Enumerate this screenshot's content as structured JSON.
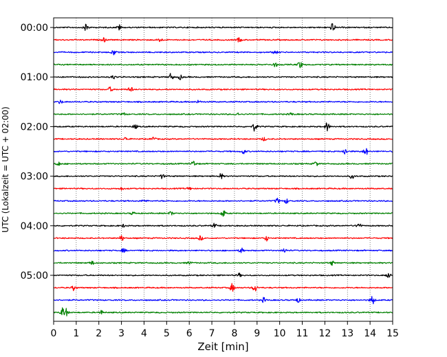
{
  "chart_data": {
    "type": "line",
    "subtype": "helicorder",
    "title": "",
    "xlabel": "Zeit  [min]",
    "ylabel": "UTC (Lokalzeit = UTC + 02:00)",
    "xlim": [
      0,
      15
    ],
    "x_ticks": [
      "0",
      "1",
      "2",
      "3",
      "4",
      "5",
      "6",
      "7",
      "8",
      "9",
      "10",
      "11",
      "12",
      "13",
      "14",
      "15"
    ],
    "y_ticks": [
      {
        "label": "00:00",
        "row": 0
      },
      {
        "label": "01:00",
        "row": 4
      },
      {
        "label": "02:00",
        "row": 8
      },
      {
        "label": "03:00",
        "row": 12
      },
      {
        "label": "04:00",
        "row": 16
      },
      {
        "label": "05:00",
        "row": 20
      }
    ],
    "row_minutes": 15,
    "row_count": 24,
    "color_cycle": [
      "#000000",
      "#ff0000",
      "#0000ff",
      "#008000"
    ],
    "vertical_grid": "dotted",
    "series": [
      {
        "events": [
          [
            1.45,
            1.0
          ],
          [
            2.9,
            0.6
          ],
          [
            12.35,
            1.0
          ]
        ]
      },
      {
        "events": [
          [
            2.2,
            0.5
          ],
          [
            4.7,
            0.5
          ],
          [
            8.2,
            0.5
          ]
        ]
      },
      {
        "events": [
          [
            2.65,
            0.6
          ],
          [
            9.8,
            0.4
          ]
        ]
      },
      {
        "events": [
          [
            9.8,
            0.5
          ],
          [
            10.9,
            0.8
          ]
        ]
      },
      {
        "events": [
          [
            2.65,
            0.4
          ],
          [
            5.2,
            0.8
          ],
          [
            5.6,
            0.5
          ]
        ]
      },
      {
        "events": [
          [
            2.5,
            0.5
          ],
          [
            3.4,
            0.6
          ]
        ]
      },
      {
        "events": [
          [
            0.3,
            0.4
          ],
          [
            6.4,
            0.3
          ]
        ]
      },
      {
        "events": [
          [
            3.1,
            0.3
          ],
          [
            8.1,
            0.4
          ],
          [
            10.5,
            0.3
          ]
        ]
      },
      {
        "events": [
          [
            3.6,
            0.5
          ],
          [
            8.9,
            1.0
          ],
          [
            12.1,
            1.0
          ]
        ]
      },
      {
        "events": [
          [
            3.2,
            0.4
          ],
          [
            4.4,
            0.5
          ],
          [
            9.3,
            0.4
          ]
        ]
      },
      {
        "events": [
          [
            8.4,
            0.5
          ],
          [
            12.9,
            0.7
          ],
          [
            13.8,
            0.9
          ]
        ]
      },
      {
        "events": [
          [
            0.2,
            0.5
          ],
          [
            6.2,
            0.7
          ],
          [
            11.6,
            0.5
          ]
        ]
      },
      {
        "events": [
          [
            4.8,
            0.5
          ],
          [
            7.4,
            0.6
          ],
          [
            13.2,
            0.5
          ]
        ]
      },
      {
        "events": [
          [
            3.0,
            0.3
          ],
          [
            6.0,
            0.3
          ]
        ]
      },
      {
        "events": [
          [
            4.0,
            0.3
          ],
          [
            9.9,
            0.6
          ],
          [
            10.3,
            0.5
          ]
        ]
      },
      {
        "events": [
          [
            3.5,
            0.3
          ],
          [
            5.2,
            0.4
          ],
          [
            7.5,
            0.8
          ]
        ]
      },
      {
        "events": [
          [
            3.1,
            0.3
          ],
          [
            7.1,
            0.5
          ],
          [
            13.5,
            0.7
          ]
        ]
      },
      {
        "events": [
          [
            3.0,
            0.6
          ],
          [
            6.5,
            0.5
          ],
          [
            9.4,
            0.6
          ]
        ]
      },
      {
        "events": [
          [
            3.1,
            0.4
          ],
          [
            8.3,
            0.6
          ],
          [
            10.2,
            0.5
          ]
        ]
      },
      {
        "events": [
          [
            1.7,
            0.4
          ],
          [
            6.0,
            0.3
          ],
          [
            12.3,
            0.5
          ]
        ]
      },
      {
        "events": [
          [
            8.2,
            0.4
          ],
          [
            14.8,
            0.6
          ]
        ]
      },
      {
        "events": [
          [
            0.9,
            0.6
          ],
          [
            7.9,
            0.9
          ],
          [
            8.9,
            0.9
          ]
        ]
      },
      {
        "events": [
          [
            9.3,
            0.5
          ],
          [
            10.8,
            0.5
          ],
          [
            14.1,
            1.0
          ]
        ]
      },
      {
        "events": [
          [
            0.4,
            1.0
          ],
          [
            0.55,
            0.8
          ],
          [
            2.1,
            0.4
          ]
        ]
      }
    ]
  }
}
